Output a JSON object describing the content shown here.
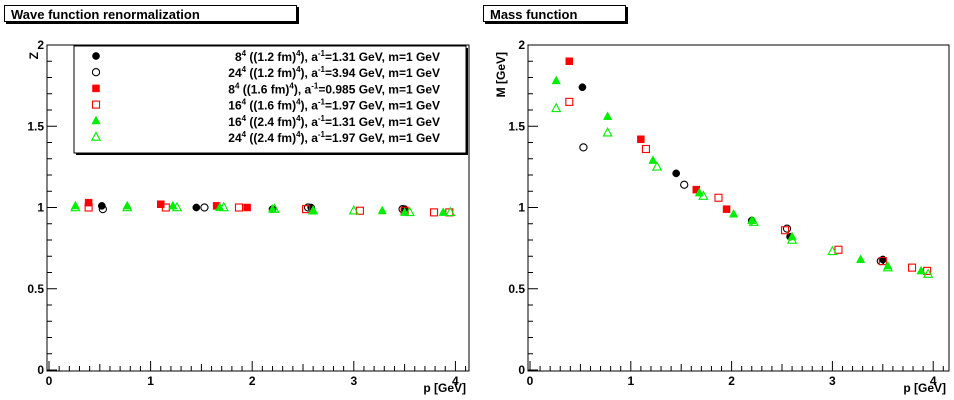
{
  "chart_data": [
    {
      "type": "scatter",
      "title": "Wave function renormalization",
      "xlabel": "p [GeV]",
      "ylabel": "Z",
      "xlim": [
        0,
        4.3
      ],
      "ylim": [
        0,
        2
      ],
      "x_ticks": [
        "0",
        "1",
        "2",
        "3",
        "4"
      ],
      "y_ticks": [
        "0",
        "0.5",
        "1",
        "1.5",
        "2"
      ],
      "legend_position": "top",
      "series": [
        {
          "name": "8^4 ((1.2 fm)^4), a^-1=1.31 GeV, m=1 GeV",
          "marker": "filled-circle",
          "color": "#000000",
          "points": [
            [
              0.52,
              1.01
            ],
            [
              1.45,
              1.0
            ],
            [
              2.2,
              0.99
            ],
            [
              2.58,
              1.0
            ],
            [
              3.5,
              0.99
            ]
          ]
        },
        {
          "name": "24^4 ((1.2 fm)^4), a^-1=3.94 GeV, m=1 GeV",
          "marker": "open-circle",
          "color": "#000000",
          "points": [
            [
              0.53,
              0.99
            ],
            [
              1.53,
              1.0
            ],
            [
              2.55,
              1.0
            ],
            [
              3.48,
              0.99
            ]
          ]
        },
        {
          "name": "8^4 ((1.6 fm)^4), a^-1=0.985 GeV, m=1 GeV",
          "marker": "filled-square",
          "color": "#ff0000",
          "points": [
            [
              0.39,
              1.03
            ],
            [
              1.1,
              1.02
            ],
            [
              1.65,
              1.01
            ],
            [
              1.95,
              1.0
            ]
          ]
        },
        {
          "name": "16^4 ((1.6 fm)^4), a^-1=1.97 GeV, m=1 GeV",
          "marker": "open-square",
          "color": "#ff0000",
          "points": [
            [
              0.39,
              1.0
            ],
            [
              1.15,
              1.0
            ],
            [
              1.87,
              1.0
            ],
            [
              2.53,
              0.99
            ],
            [
              3.06,
              0.98
            ],
            [
              3.5,
              0.98
            ],
            [
              3.79,
              0.97
            ],
            [
              3.94,
              0.97
            ]
          ]
        },
        {
          "name": "16^4 ((2.4 fm)^4), a^-1=1.31 GeV, m=1 GeV",
          "marker": "filled-triangle",
          "color": "#00ee00",
          "points": [
            [
              0.26,
              1.01
            ],
            [
              0.77,
              1.01
            ],
            [
              1.22,
              1.01
            ],
            [
              1.68,
              1.0
            ],
            [
              2.2,
              0.99
            ],
            [
              2.6,
              0.98
            ],
            [
              3.28,
              0.98
            ],
            [
              3.5,
              0.97
            ],
            [
              3.88,
              0.97
            ]
          ]
        },
        {
          "name": "24^4 ((2.4 fm)^4), a^-1=1.97 GeV, m=1 GeV",
          "marker": "open-triangle",
          "color": "#00ee00",
          "points": [
            [
              0.26,
              1.0
            ],
            [
              0.77,
              1.0
            ],
            [
              1.26,
              1.0
            ],
            [
              1.72,
              1.0
            ],
            [
              2.22,
              0.99
            ],
            [
              2.6,
              0.98
            ],
            [
              3.0,
              0.98
            ],
            [
              3.55,
              0.97
            ],
            [
              3.95,
              0.97
            ]
          ]
        }
      ],
      "legend": [
        {
          "base": "8",
          "exp": "4",
          "mid": " ((1.2 fm)",
          "mid_exp": "4",
          "tail1": "), a",
          "a_exp": "-1",
          "tail2": "=1.31 GeV, m=1 GeV"
        },
        {
          "base": "24",
          "exp": "4",
          "mid": " ((1.2 fm)",
          "mid_exp": "4",
          "tail1": "), a",
          "a_exp": "-1",
          "tail2": "=3.94 GeV, m=1 GeV"
        },
        {
          "base": "8",
          "exp": "4",
          "mid": " ((1.6 fm)",
          "mid_exp": "4",
          "tail1": "), a",
          "a_exp": "-1",
          "tail2": "=0.985 GeV, m=1 GeV"
        },
        {
          "base": "16",
          "exp": "4",
          "mid": " ((1.6 fm)",
          "mid_exp": "4",
          "tail1": "), a",
          "a_exp": "-1",
          "tail2": "=1.97 GeV, m=1 GeV"
        },
        {
          "base": "16",
          "exp": "4",
          "mid": " ((2.4 fm)",
          "mid_exp": "4",
          "tail1": "), a",
          "a_exp": "-1",
          "tail2": "=1.31 GeV, m=1 GeV"
        },
        {
          "base": "24",
          "exp": "4",
          "mid": " ((2.4 fm)",
          "mid_exp": "4",
          "tail1": "), a",
          "a_exp": "-1",
          "tail2": "=1.97 GeV, m=1 GeV"
        }
      ]
    },
    {
      "type": "scatter",
      "title": "Mass function",
      "xlabel": "p [GeV]",
      "ylabel": "M [GeV]",
      "xlim": [
        0,
        4.3
      ],
      "ylim": [
        0,
        2
      ],
      "x_ticks": [
        "0",
        "1",
        "2",
        "3",
        "4"
      ],
      "y_ticks": [
        "0",
        "0.5",
        "1",
        "1.5",
        "2"
      ],
      "series": [
        {
          "name": "8^4 ((1.2 fm)^4), a^-1=1.31 GeV, m=1 GeV",
          "marker": "filled-circle",
          "color": "#000000",
          "points": [
            [
              0.52,
              1.74
            ],
            [
              1.45,
              1.21
            ],
            [
              2.2,
              0.92
            ],
            [
              2.58,
              0.82
            ],
            [
              3.5,
              0.68
            ]
          ]
        },
        {
          "name": "24^4 ((1.2 fm)^4), a^-1=3.94 GeV, m=1 GeV",
          "marker": "open-circle",
          "color": "#000000",
          "points": [
            [
              0.53,
              1.37
            ],
            [
              1.53,
              1.14
            ],
            [
              2.55,
              0.87
            ],
            [
              3.48,
              0.67
            ]
          ]
        },
        {
          "name": "8^4 ((1.6 fm)^4), a^-1=0.985 GeV, m=1 GeV",
          "marker": "filled-square",
          "color": "#ff0000",
          "points": [
            [
              0.39,
              1.9
            ],
            [
              1.1,
              1.42
            ],
            [
              1.65,
              1.11
            ],
            [
              1.95,
              0.99
            ]
          ]
        },
        {
          "name": "16^4 ((1.6 fm)^4), a^-1=1.97 GeV, m=1 GeV",
          "marker": "open-square",
          "color": "#ff0000",
          "points": [
            [
              0.39,
              1.65
            ],
            [
              1.15,
              1.36
            ],
            [
              1.87,
              1.06
            ],
            [
              2.53,
              0.86
            ],
            [
              3.06,
              0.74
            ],
            [
              3.5,
              0.67
            ],
            [
              3.79,
              0.63
            ],
            [
              3.94,
              0.61
            ]
          ]
        },
        {
          "name": "16^4 ((2.4 fm)^4), a^-1=1.31 GeV, m=1 GeV",
          "marker": "filled-triangle",
          "color": "#00ee00",
          "points": [
            [
              0.26,
              1.78
            ],
            [
              0.77,
              1.56
            ],
            [
              1.22,
              1.29
            ],
            [
              1.68,
              1.09
            ],
            [
              2.02,
              0.96
            ],
            [
              2.2,
              0.92
            ],
            [
              2.6,
              0.82
            ],
            [
              3.28,
              0.68
            ],
            [
              3.55,
              0.64
            ],
            [
              3.88,
              0.61
            ]
          ]
        },
        {
          "name": "24^4 ((2.4 fm)^4), a^-1=1.97 GeV, m=1 GeV",
          "marker": "open-triangle",
          "color": "#00ee00",
          "points": [
            [
              0.26,
              1.61
            ],
            [
              0.77,
              1.46
            ],
            [
              1.26,
              1.25
            ],
            [
              1.72,
              1.07
            ],
            [
              2.22,
              0.91
            ],
            [
              2.6,
              0.8
            ],
            [
              3.0,
              0.73
            ],
            [
              3.55,
              0.63
            ],
            [
              3.95,
              0.59
            ]
          ]
        }
      ]
    }
  ]
}
